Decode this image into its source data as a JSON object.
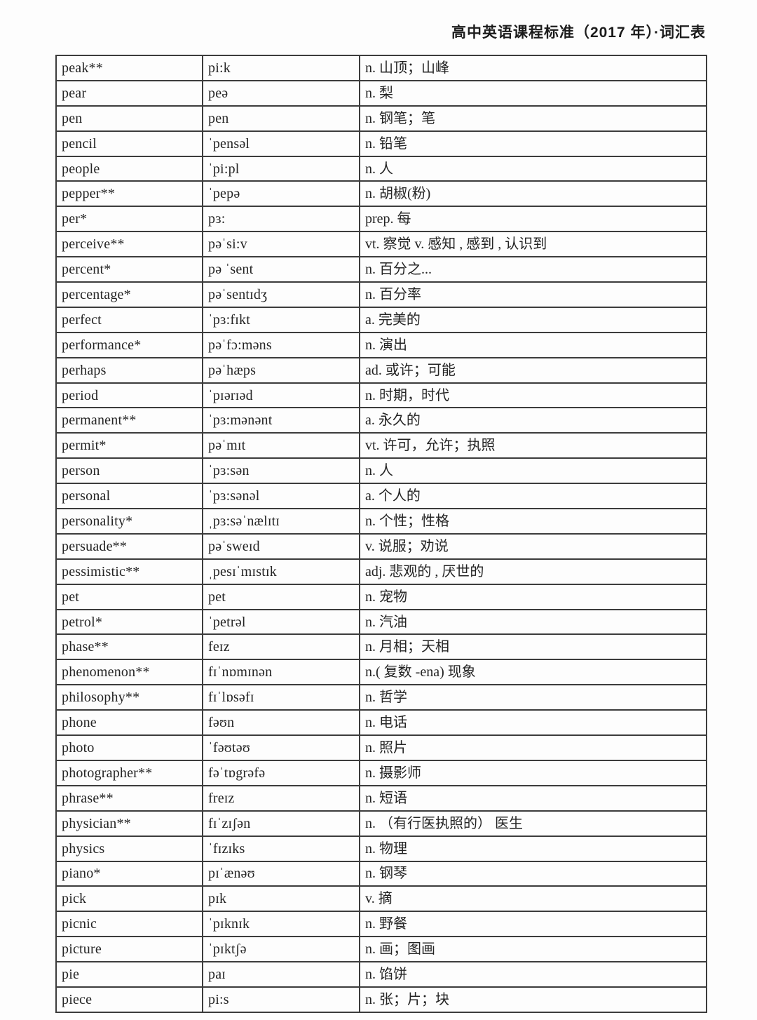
{
  "page": {
    "header_title": "高中英语课程标准（2017 年）·词汇表"
  },
  "table": {
    "rows": [
      [
        "peak**",
        "pi:k",
        "n. 山顶；山峰"
      ],
      [
        "pear",
        "peə",
        "n. 梨"
      ],
      [
        "pen",
        "pen",
        "n. 钢笔；笔"
      ],
      [
        "pencil",
        "ˈpensəl",
        "n. 铅笔"
      ],
      [
        "people",
        "ˈpi:pl",
        "n. 人"
      ],
      [
        "pepper**",
        "ˈpepə",
        "n. 胡椒(粉)"
      ],
      [
        "per*",
        "pɜ:",
        "prep. 每"
      ],
      [
        "perceive**",
        "pəˈsi:v",
        "vt. 察觉 v. 感知 , 感到 , 认识到"
      ],
      [
        "percent*",
        "pə ˈsent",
        "n. 百分之..."
      ],
      [
        "percentage*",
        "pəˈsentɪdʒ",
        "n. 百分率"
      ],
      [
        "perfect",
        "ˈpɜ:fɪkt",
        "a. 完美的"
      ],
      [
        "performance*",
        "pəˈfɔ:məns",
        "n. 演出"
      ],
      [
        "perhaps",
        "pəˈhæps",
        "ad. 或许；可能"
      ],
      [
        "period",
        "ˈpɪərɪəd",
        "n. 时期，时代"
      ],
      [
        "permanent**",
        "ˈpɜ:mənənt",
        "a. 永久的"
      ],
      [
        "permit*",
        "pəˈmɪt",
        "vt. 许可，允许；执照"
      ],
      [
        "person",
        "ˈpɜ:sən",
        "n. 人"
      ],
      [
        "personal",
        "ˈpɜ:sənəl",
        "a. 个人的"
      ],
      [
        "personality*",
        "ˌpɜ:səˈnælɪtɪ",
        "n. 个性；性格"
      ],
      [
        "persuade**",
        "pəˈsweɪd",
        "v. 说服；劝说"
      ],
      [
        "pessimistic**",
        "ˌpesɪˈmɪstɪk",
        "adj. 悲观的 , 厌世的"
      ],
      [
        "pet",
        "pet",
        "n. 宠物"
      ],
      [
        "petrol*",
        "ˈpetrəl",
        "n. 汽油"
      ],
      [
        "phase**",
        "feɪz",
        "n. 月相；天相"
      ],
      [
        "phenomenon**",
        "fɪˈnɒmɪnən",
        "n.( 复数 -ena) 现象"
      ],
      [
        "philosophy**",
        "fɪˈlɒsəfɪ",
        "n. 哲学"
      ],
      [
        "phone",
        "fəʊn",
        "n. 电话"
      ],
      [
        "photo",
        "ˈfəʊtəʊ",
        "n. 照片"
      ],
      [
        "photographer**",
        "fəˈtɒgrəfə",
        "n. 摄影师"
      ],
      [
        "phrase**",
        "freɪz",
        "n. 短语"
      ],
      [
        "physician**",
        "fɪˈzɪʃən",
        "n. （有行医执照的） 医生"
      ],
      [
        "physics",
        "ˈfɪzɪks",
        "n. 物理"
      ],
      [
        "piano*",
        "pɪˈænəʊ",
        "n. 钢琴"
      ],
      [
        "pick",
        "pɪk",
        "v. 摘"
      ],
      [
        "picnic",
        "ˈpɪknɪk",
        "n. 野餐"
      ],
      [
        "picture",
        "ˈpɪktʃə",
        "n. 画；图画"
      ],
      [
        "pie",
        "paɪ",
        "n. 馅饼"
      ],
      [
        "piece",
        "pi:s",
        "n. 张；片；块"
      ]
    ]
  }
}
